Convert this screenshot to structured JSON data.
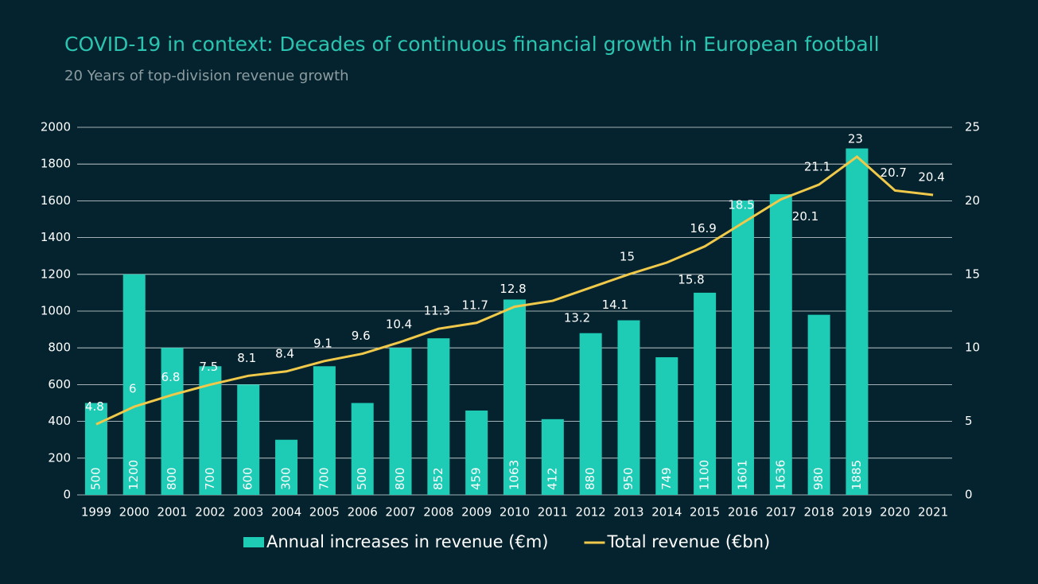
{
  "chart_data": {
    "type": "bar",
    "title": "COVID-19 in context: Decades of continuous financial growth in European football",
    "subtitle": "20 Years of top-division revenue growth",
    "categories": [
      "1999",
      "2000",
      "2001",
      "2002",
      "2003",
      "2004",
      "2005",
      "2006",
      "2007",
      "2008",
      "2009",
      "2010",
      "2011",
      "2012",
      "2013",
      "2014",
      "2015",
      "2016",
      "2017",
      "2018",
      "2019",
      "2020",
      "2021"
    ],
    "series": [
      {
        "name": "Annual increases in revenue (€m)",
        "type": "bar",
        "color": "#1ecbb5",
        "values": [
          500,
          1200,
          800,
          700,
          600,
          300,
          700,
          500,
          800,
          852,
          459,
          1063,
          412,
          880,
          950,
          749,
          1100,
          1601,
          1636,
          980,
          1885,
          null,
          null
        ]
      },
      {
        "name": "Total revenue (€bn)",
        "type": "line",
        "axis": "y2",
        "color": "#f0c94a",
        "values": [
          4.8,
          6,
          6.8,
          7.5,
          8.1,
          8.4,
          9.1,
          9.6,
          10.4,
          11.3,
          11.7,
          12.8,
          13.2,
          14.1,
          15,
          15.8,
          16.9,
          18.5,
          20.1,
          21.1,
          23,
          20.7,
          20.4
        ]
      }
    ],
    "ylim": [
      0,
      2000
    ],
    "yticks": [
      0,
      200,
      400,
      600,
      800,
      1000,
      1200,
      1400,
      1600,
      1800,
      2000
    ],
    "y2lim": [
      0,
      25
    ],
    "y2ticks": [
      0,
      5,
      10,
      15,
      20,
      25
    ],
    "grid": true
  }
}
